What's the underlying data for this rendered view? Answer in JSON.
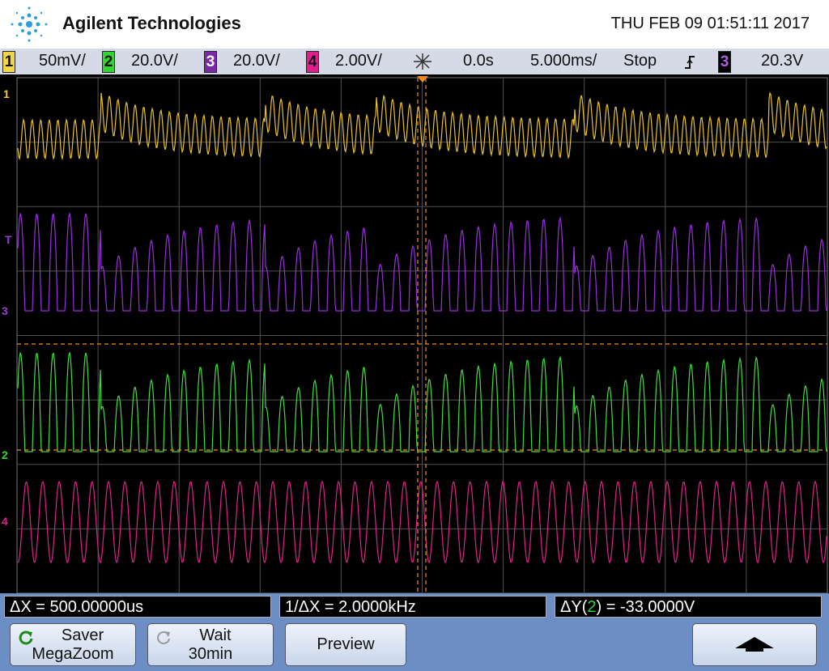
{
  "header": {
    "brand": "Agilent Technologies",
    "datetime": "THU FEB 09 01:51:11 2017"
  },
  "status_bar": {
    "channels": [
      {
        "number": "1",
        "scale": "50mV/"
      },
      {
        "number": "2",
        "scale": "20.0V/"
      },
      {
        "number": "3",
        "scale": "20.0V/"
      },
      {
        "number": "4",
        "scale": "2.00V/"
      }
    ],
    "delay": "0.0s",
    "timebase": "5.000ms/",
    "run_state": "Stop",
    "trigger_source": "3",
    "trigger_level": "20.3V"
  },
  "channel_markers": {
    "ch1": "1",
    "trigger": "T",
    "ch3": "3",
    "ch2": "2",
    "ch4": "4"
  },
  "measurements": {
    "delta_x": "ΔX = 500.00000us",
    "inverse_delta_x": "1/ΔX = 2.0000kHz",
    "delta_y": {
      "prefix": "ΔY(",
      "channel": "2",
      "suffix": ") = -33.0000V"
    }
  },
  "softkeys": {
    "saver": {
      "line1": "Saver",
      "line2": "MegaZoom"
    },
    "wait": {
      "line1": "Wait",
      "line2": "30min"
    },
    "preview": "Preview"
  }
}
